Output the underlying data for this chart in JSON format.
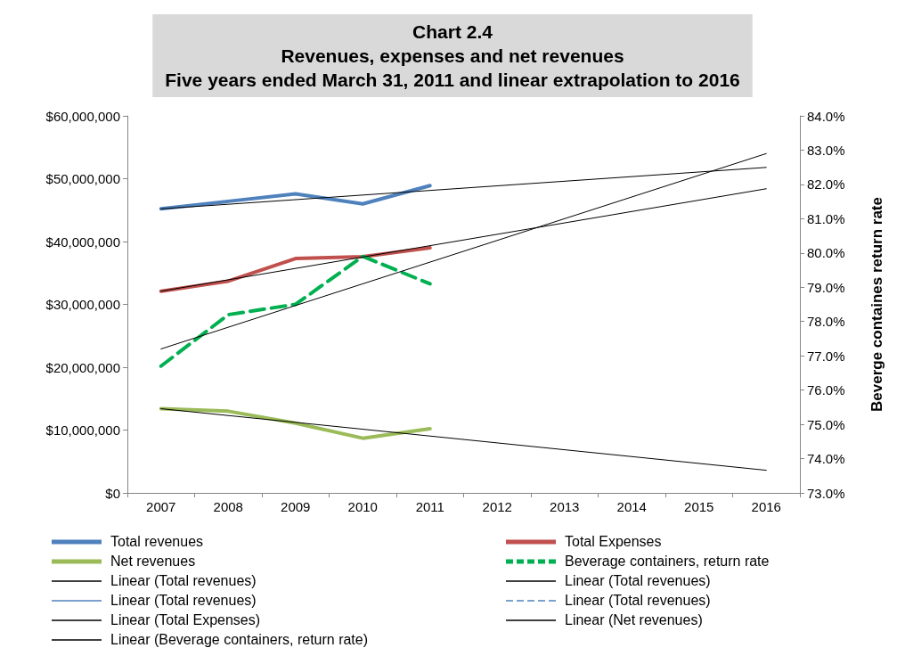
{
  "chart_data": {
    "type": "line",
    "title": "Chart 2.4\nRevenues, expenses and net revenues\nFive years ended March 31, 2011 and linear extrapolation to 2016",
    "y2label": "Beverge containes return rate",
    "categories": [
      "2007",
      "2008",
      "2009",
      "2010",
      "2011",
      "2012",
      "2013",
      "2014",
      "2015",
      "2016"
    ],
    "ylim": [
      0,
      60000000
    ],
    "yticks": [
      {
        "value": 0,
        "label": "$0"
      },
      {
        "value": 10000000,
        "label": "$10,000,000"
      },
      {
        "value": 20000000,
        "label": "$20,000,000"
      },
      {
        "value": 30000000,
        "label": "$30,000,000"
      },
      {
        "value": 40000000,
        "label": "$40,000,000"
      },
      {
        "value": 50000000,
        "label": "$50,000,000"
      },
      {
        "value": 60000000,
        "label": "$60,000,000"
      }
    ],
    "y2lim": [
      73,
      84
    ],
    "y2ticks": [
      {
        "value": 73,
        "label": "73.0%"
      },
      {
        "value": 74,
        "label": "74.0%"
      },
      {
        "value": 75,
        "label": "75.0%"
      },
      {
        "value": 76,
        "label": "76.0%"
      },
      {
        "value": 77,
        "label": "77.0%"
      },
      {
        "value": 78,
        "label": "78.0%"
      },
      {
        "value": 79,
        "label": "79.0%"
      },
      {
        "value": 80,
        "label": "80.0%"
      },
      {
        "value": 81,
        "label": "81.0%"
      },
      {
        "value": 82,
        "label": "82.0%"
      },
      {
        "value": 83,
        "label": "83.0%"
      },
      {
        "value": 84,
        "label": "84.0%"
      }
    ],
    "grid": false,
    "legend": "bottom",
    "marker": "none",
    "series": [
      {
        "name": "Total revenues",
        "color": "#4f81bd",
        "values": [
          45200000,
          46400000,
          47600000,
          46000000,
          48900000,
          null,
          null,
          null,
          null,
          null
        ]
      },
      {
        "name": "Total Expenses",
        "color": "#c0504d",
        "values": [
          32100000,
          33700000,
          37300000,
          37600000,
          39000000,
          null,
          null,
          null,
          null,
          null
        ]
      },
      {
        "name": "Net revenues",
        "color": "#9bbb59",
        "values": [
          13400000,
          13000000,
          11100000,
          8700000,
          10200000,
          null,
          null,
          null,
          null,
          null
        ]
      },
      {
        "name": "Beverage containers, return rate",
        "color": "#00b050",
        "axis": "y2",
        "line_style": "dashed",
        "values": [
          76.7,
          78.2,
          78.5,
          79.9,
          79.1,
          null,
          null,
          null,
          null,
          null
        ]
      },
      {
        "name": "Linear (Total revenues)",
        "color": "#000000",
        "values": [
          45200000,
          null,
          null,
          null,
          null,
          null,
          null,
          null,
          null,
          51800000
        ]
      },
      {
        "name": "Linear (Total revenues)",
        "color": "#000000",
        "values": [
          null,
          null,
          null,
          null,
          null,
          null,
          null,
          null,
          null,
          null
        ]
      },
      {
        "name": "Linear (Total revenues)",
        "color": "#4f81bd",
        "values": [
          null,
          null,
          null,
          null,
          null,
          null,
          null,
          null,
          null,
          null
        ]
      },
      {
        "name": "Linear (Total revenues)",
        "color": "#4f81bd",
        "line_style": "dashed",
        "values": [
          null,
          null,
          null,
          null,
          null,
          null,
          null,
          null,
          null,
          null
        ]
      },
      {
        "name": "Linear (Total Expenses)",
        "color": "#000000",
        "values": [
          32100000,
          null,
          null,
          null,
          null,
          null,
          null,
          null,
          null,
          48400000
        ]
      },
      {
        "name": "Linear (Net revenues)",
        "color": "#000000",
        "values": [
          13400000,
          null,
          null,
          null,
          null,
          null,
          null,
          null,
          null,
          3600000
        ]
      },
      {
        "name": "Linear (Beverage containers, return rate)",
        "color": "#000000",
        "axis": "y2",
        "values": [
          77.2,
          null,
          null,
          null,
          null,
          null,
          null,
          null,
          null,
          82.9
        ]
      }
    ]
  }
}
